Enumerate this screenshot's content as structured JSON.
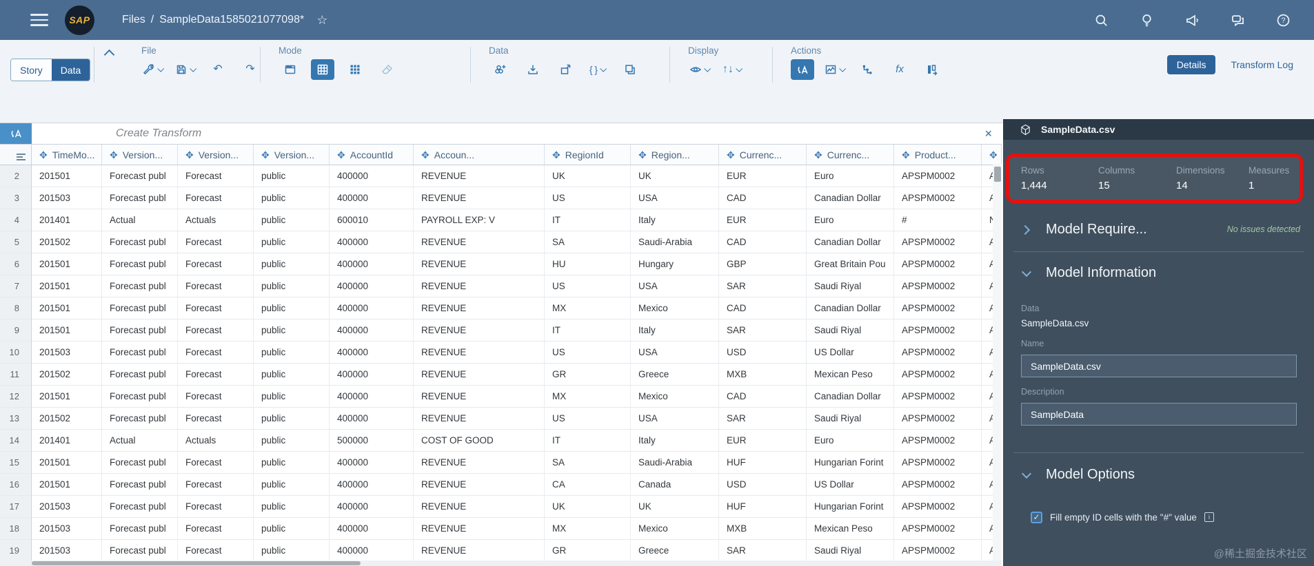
{
  "shell": {
    "logo": "SAP",
    "breadcrumb_root": "Files",
    "breadcrumb_sep": "/",
    "document_title": "SampleData1585021077098*",
    "star_icon": "star-icon",
    "icons": [
      "search-icon",
      "lightbulb-icon",
      "megaphone-icon",
      "discussion-icon",
      "help-icon"
    ]
  },
  "toolbar": {
    "view_toggle": {
      "story": "Story",
      "data": "Data",
      "active": "Data"
    },
    "sections": [
      {
        "label": "File",
        "cls": "s-file",
        "items": [
          {
            "button": "design-tools-button",
            "icon": "wrench-icon",
            "caret": true
          },
          {
            "button": "save-button",
            "icon": "save-icon",
            "caret": true
          },
          {
            "button": "undo-button",
            "icon": "undo-icon"
          },
          {
            "button": "redo-button",
            "icon": "redo-icon"
          }
        ]
      },
      {
        "label": "Mode",
        "cls": "s-mode",
        "items": [
          {
            "button": "card-view-button",
            "icon": "card-view-icon"
          },
          {
            "button": "grid-view-button",
            "icon": "grid-view-icon",
            "selected": true
          },
          {
            "button": "dot-grid-view-button",
            "icon": "dot-grid-icon"
          },
          {
            "button": "eraser-button",
            "icon": "eraser-icon",
            "disabled": true
          }
        ]
      },
      {
        "label": "Data",
        "cls": "s-data",
        "items": [
          {
            "button": "append-data-button",
            "icon": "model-add-icon"
          },
          {
            "button": "import-data-button",
            "icon": "import-icon"
          },
          {
            "button": "export-data-button",
            "icon": "export-icon"
          },
          {
            "button": "custom-expression-button",
            "icon": "code-icon",
            "caret": true
          },
          {
            "button": "duplicate-button",
            "icon": "duplicate-icon"
          }
        ]
      },
      {
        "label": "Display",
        "cls": "s-display",
        "items": [
          {
            "button": "visibility-button",
            "icon": "eye-icon",
            "caret": true
          },
          {
            "button": "sort-button",
            "icon": "sort-icon",
            "caret": true
          }
        ]
      },
      {
        "label": "Actions",
        "cls": "s-actions",
        "items": [
          {
            "button": "create-transform-button",
            "icon": "transform-icon",
            "selected": true
          },
          {
            "button": "geo-enrich-button",
            "icon": "geo-map-icon",
            "caret": true
          },
          {
            "button": "level-hierarchy-button",
            "icon": "hierarchy-icon"
          },
          {
            "button": "formula-button",
            "icon": "formula-icon"
          },
          {
            "button": "column-actions-button",
            "icon": "column-options-icon"
          }
        ]
      }
    ],
    "details_label": "Details",
    "transform_log_label": "Transform Log"
  },
  "dataset_selector": {
    "value": "SampleData.csv"
  },
  "transform_bar": {
    "placeholder": "Create Transform",
    "close_glyph": "×"
  },
  "table": {
    "dimension_glyph": "✥",
    "columns": [
      "TimeMo...",
      "Version...",
      "Version...",
      "Version...",
      "AccountId",
      "Accoun...",
      "RegionId",
      "Region...",
      "Currenc...",
      "Currenc...",
      "Product...",
      ""
    ],
    "rows": [
      {
        "num": "2",
        "cells": [
          "201501",
          "Forecast publ",
          "Forecast",
          "public",
          "400000",
          "REVENUE",
          "UK",
          "UK",
          "EUR",
          "Euro",
          "APSPM0002",
          "A"
        ]
      },
      {
        "num": "3",
        "cells": [
          "201503",
          "Forecast publ",
          "Forecast",
          "public",
          "400000",
          "REVENUE",
          "US",
          "USA",
          "CAD",
          "Canadian Dollar",
          "APSPM0002",
          "A"
        ]
      },
      {
        "num": "4",
        "cells": [
          "201401",
          "Actual",
          "Actuals",
          "public",
          "600010",
          "PAYROLL EXP: V",
          "IT",
          "Italy",
          "EUR",
          "Euro",
          "#",
          "N"
        ]
      },
      {
        "num": "5",
        "cells": [
          "201502",
          "Forecast publ",
          "Forecast",
          "public",
          "400000",
          "REVENUE",
          "SA",
          "Saudi-Arabia",
          "CAD",
          "Canadian Dollar",
          "APSPM0002",
          "A"
        ]
      },
      {
        "num": "6",
        "cells": [
          "201501",
          "Forecast publ",
          "Forecast",
          "public",
          "400000",
          "REVENUE",
          "HU",
          "Hungary",
          "GBP",
          "Great Britain Pou",
          "APSPM0002",
          "A"
        ]
      },
      {
        "num": "7",
        "cells": [
          "201501",
          "Forecast publ",
          "Forecast",
          "public",
          "400000",
          "REVENUE",
          "US",
          "USA",
          "SAR",
          "Saudi Riyal",
          "APSPM0002",
          "A"
        ]
      },
      {
        "num": "8",
        "cells": [
          "201501",
          "Forecast publ",
          "Forecast",
          "public",
          "400000",
          "REVENUE",
          "MX",
          "Mexico",
          "CAD",
          "Canadian Dollar",
          "APSPM0002",
          "A"
        ]
      },
      {
        "num": "9",
        "cells": [
          "201501",
          "Forecast publ",
          "Forecast",
          "public",
          "400000",
          "REVENUE",
          "IT",
          "Italy",
          "SAR",
          "Saudi Riyal",
          "APSPM0002",
          "A"
        ]
      },
      {
        "num": "10",
        "cells": [
          "201503",
          "Forecast publ",
          "Forecast",
          "public",
          "400000",
          "REVENUE",
          "US",
          "USA",
          "USD",
          "US Dollar",
          "APSPM0002",
          "A"
        ]
      },
      {
        "num": "11",
        "cells": [
          "201502",
          "Forecast publ",
          "Forecast",
          "public",
          "400000",
          "REVENUE",
          "GR",
          "Greece",
          "MXB",
          "Mexican Peso",
          "APSPM0002",
          "A"
        ]
      },
      {
        "num": "12",
        "cells": [
          "201501",
          "Forecast publ",
          "Forecast",
          "public",
          "400000",
          "REVENUE",
          "MX",
          "Mexico",
          "CAD",
          "Canadian Dollar",
          "APSPM0002",
          "A"
        ]
      },
      {
        "num": "13",
        "cells": [
          "201502",
          "Forecast publ",
          "Forecast",
          "public",
          "400000",
          "REVENUE",
          "US",
          "USA",
          "SAR",
          "Saudi Riyal",
          "APSPM0002",
          "A"
        ]
      },
      {
        "num": "14",
        "cells": [
          "201401",
          "Actual",
          "Actuals",
          "public",
          "500000",
          "COST OF GOOD",
          "IT",
          "Italy",
          "EUR",
          "Euro",
          "APSPM0002",
          "A"
        ]
      },
      {
        "num": "15",
        "cells": [
          "201501",
          "Forecast publ",
          "Forecast",
          "public",
          "400000",
          "REVENUE",
          "SA",
          "Saudi-Arabia",
          "HUF",
          "Hungarian Forint",
          "APSPM0002",
          "A"
        ]
      },
      {
        "num": "16",
        "cells": [
          "201501",
          "Forecast publ",
          "Forecast",
          "public",
          "400000",
          "REVENUE",
          "CA",
          "Canada",
          "USD",
          "US Dollar",
          "APSPM0002",
          "A"
        ]
      },
      {
        "num": "17",
        "cells": [
          "201503",
          "Forecast publ",
          "Forecast",
          "public",
          "400000",
          "REVENUE",
          "UK",
          "UK",
          "HUF",
          "Hungarian Forint",
          "APSPM0002",
          "A"
        ]
      },
      {
        "num": "18",
        "cells": [
          "201503",
          "Forecast publ",
          "Forecast",
          "public",
          "400000",
          "REVENUE",
          "MX",
          "Mexico",
          "MXB",
          "Mexican Peso",
          "APSPM0002",
          "A"
        ]
      },
      {
        "num": "19",
        "cells": [
          "201503",
          "Forecast publ",
          "Forecast",
          "public",
          "400000",
          "REVENUE",
          "GR",
          "Greece",
          "SAR",
          "Saudi Riyal",
          "APSPM0002",
          "A"
        ]
      }
    ]
  },
  "panel": {
    "title": "SampleData.csv",
    "stats": [
      {
        "label": "Rows",
        "value": "1,444"
      },
      {
        "label": "Columns",
        "value": "15"
      },
      {
        "label": "Dimensions",
        "value": "14"
      },
      {
        "label": "Measures",
        "value": "1"
      }
    ],
    "requirements": {
      "title": "Model Require...",
      "status": "No issues detected"
    },
    "information": {
      "title": "Model Information",
      "data_label": "Data",
      "data_value": "SampleData.csv",
      "name_label": "Name",
      "name_value": "SampleData.csv",
      "description_label": "Description",
      "description_value": "SampleData"
    },
    "options": {
      "title": "Model Options",
      "checkbox_label": "Fill empty ID cells with the \"#\" value",
      "checkbox_checked": true,
      "info_glyph": "i"
    }
  },
  "watermark": "@稀土掘金技术社区",
  "colors": {
    "topbar": "#4a6c91",
    "accent_blue": "#3577b0",
    "selected_blue": "#2e639a",
    "panel_bg": "#3f4f5e",
    "panel_header": "#2b3947",
    "annotation_red": "#e41111",
    "status_green": "#a3c9a2"
  }
}
